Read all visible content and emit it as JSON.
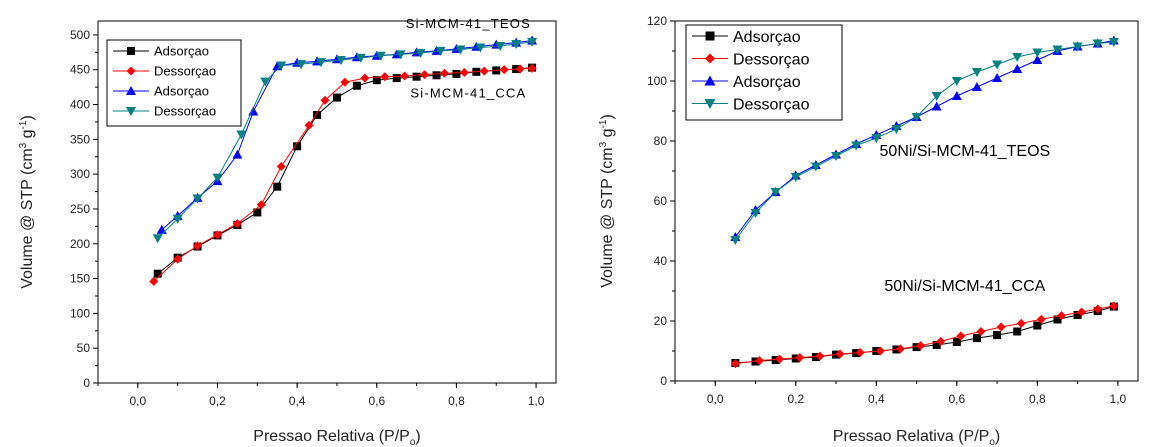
{
  "chart_data": [
    {
      "type": "line",
      "xlabel": "Pressao Relativa (P/P",
      "xlabel_sub": "o",
      "xlabel_end": ")",
      "ylabel": "Volume @ STP (cm",
      "ylabel_sup1": "3",
      "ylabel_mid": " g",
      "ylabel_sup2": "-1",
      "ylabel_end": ")",
      "xlim": [
        -0.1,
        1.05
      ],
      "ylim": [
        0,
        520
      ],
      "xticks": [
        0.0,
        0.2,
        0.4,
        0.6,
        0.8,
        1.0
      ],
      "xtick_labels": [
        "0,0",
        "0,2",
        "0,4",
        "0,6",
        "0,8",
        "1,0"
      ],
      "yticks": [
        0,
        50,
        100,
        150,
        200,
        250,
        300,
        350,
        400,
        450,
        500
      ],
      "ytick_labels": [
        "0",
        "50",
        "100",
        "150",
        "200",
        "250",
        "300",
        "350",
        "400",
        "450",
        "500"
      ],
      "legend_position": "top-left",
      "annotations": [
        {
          "text": "Si-MCM-41_TEOS",
          "x": 0.83,
          "y": 510
        },
        {
          "text": "Si-MCM-41_CCA",
          "x": 0.83,
          "y": 410
        }
      ],
      "series": [
        {
          "name": "Adsorçao",
          "color": "#000000",
          "marker": "square",
          "x": [
            0.05,
            0.1,
            0.15,
            0.2,
            0.25,
            0.3,
            0.35,
            0.4,
            0.45,
            0.5,
            0.55,
            0.6,
            0.65,
            0.7,
            0.75,
            0.8,
            0.85,
            0.9,
            0.95,
            0.99
          ],
          "y": [
            157,
            180,
            196,
            212,
            227,
            245,
            282,
            340,
            385,
            410,
            427,
            435,
            438,
            440,
            442,
            444,
            447,
            449,
            451,
            453
          ]
        },
        {
          "name": "Dessorçao",
          "color": "#ff0000",
          "marker": "diamond",
          "x": [
            0.04,
            0.1,
            0.15,
            0.2,
            0.25,
            0.31,
            0.36,
            0.43,
            0.47,
            0.52,
            0.57,
            0.62,
            0.67,
            0.72,
            0.77,
            0.82,
            0.87,
            0.92,
            0.96,
            0.99
          ],
          "y": [
            146,
            178,
            197,
            213,
            229,
            256,
            311,
            370,
            406,
            432,
            438,
            440,
            441,
            443,
            445,
            446,
            448,
            450,
            451,
            452
          ]
        },
        {
          "name": "Adsorçao",
          "color": "#0000ff",
          "marker": "triangle-up",
          "x": [
            0.06,
            0.1,
            0.15,
            0.2,
            0.25,
            0.29,
            0.35,
            0.4,
            0.45,
            0.5,
            0.55,
            0.6,
            0.65,
            0.7,
            0.75,
            0.8,
            0.85,
            0.9,
            0.95,
            0.99
          ],
          "y": [
            220,
            240,
            266,
            290,
            328,
            390,
            455,
            460,
            462,
            465,
            468,
            470,
            472,
            475,
            477,
            480,
            483,
            486,
            489,
            492
          ]
        },
        {
          "name": "Dessorçao",
          "color": "#008080",
          "marker": "triangle-down",
          "x": [
            0.05,
            0.1,
            0.15,
            0.2,
            0.26,
            0.32,
            0.36,
            0.41,
            0.46,
            0.51,
            0.56,
            0.61,
            0.66,
            0.71,
            0.76,
            0.81,
            0.86,
            0.91,
            0.95,
            0.99
          ],
          "y": [
            208,
            236,
            265,
            295,
            357,
            433,
            456,
            458,
            461,
            464,
            467,
            470,
            472,
            474,
            477,
            479,
            482,
            484,
            487,
            490
          ]
        }
      ]
    },
    {
      "type": "line",
      "xlabel": "Pressao Relativa (P/P",
      "xlabel_sub": "o",
      "xlabel_end": ")",
      "ylabel": "Volume @ STP (cm",
      "ylabel_sup1": "3",
      "ylabel_mid": " g",
      "ylabel_sup2": "-1",
      "ylabel_end": ")",
      "xlim": [
        -0.1,
        1.05
      ],
      "ylim": [
        0,
        120
      ],
      "xticks": [
        0.0,
        0.2,
        0.4,
        0.6,
        0.8,
        1.0
      ],
      "xtick_labels": [
        "0,0",
        "0,2",
        "0,4",
        "0,6",
        "0,8",
        "1,0"
      ],
      "yticks": [
        0,
        20,
        40,
        60,
        80,
        100,
        120
      ],
      "ytick_labels": [
        "0",
        "20",
        "40",
        "60",
        "80",
        "100",
        "120"
      ],
      "legend_position": "top-left",
      "annotations": [
        {
          "text": "50Ni/Si-MCM-41_TEOS",
          "x": 0.62,
          "y": 75
        },
        {
          "text": "50Ni/Si-MCM-41_CCA",
          "x": 0.62,
          "y": 30
        }
      ],
      "series": [
        {
          "name": "Adsorçao",
          "color": "#000000",
          "marker": "square",
          "x": [
            0.05,
            0.1,
            0.15,
            0.2,
            0.25,
            0.3,
            0.35,
            0.4,
            0.45,
            0.5,
            0.55,
            0.6,
            0.65,
            0.7,
            0.75,
            0.8,
            0.85,
            0.9,
            0.95,
            0.99
          ],
          "y": [
            6,
            6.5,
            7,
            7.5,
            8,
            8.8,
            9.3,
            10,
            10.5,
            11.3,
            12,
            13,
            14.3,
            15.3,
            16.5,
            18.5,
            20.5,
            22,
            23.3,
            24.8
          ]
        },
        {
          "name": "Dessorçao",
          "color": "#ff0000",
          "marker": "diamond",
          "x": [
            0.05,
            0.11,
            0.16,
            0.21,
            0.26,
            0.31,
            0.36,
            0.41,
            0.46,
            0.51,
            0.56,
            0.61,
            0.66,
            0.71,
            0.76,
            0.81,
            0.86,
            0.91,
            0.95,
            0.99
          ],
          "y": [
            5.8,
            6.8,
            7.3,
            7.8,
            8.3,
            9,
            9.5,
            10,
            10.7,
            11.8,
            13.2,
            15,
            16.5,
            18,
            19.2,
            20.6,
            21.8,
            23,
            24,
            25
          ]
        },
        {
          "name": "Adsorçao",
          "color": "#0000ff",
          "marker": "triangle-up",
          "x": [
            0.05,
            0.1,
            0.15,
            0.2,
            0.25,
            0.3,
            0.35,
            0.4,
            0.45,
            0.5,
            0.55,
            0.6,
            0.65,
            0.7,
            0.75,
            0.8,
            0.85,
            0.9,
            0.95,
            0.99
          ],
          "y": [
            48,
            57,
            63,
            68.5,
            72,
            75.5,
            79,
            82,
            85,
            88,
            91.5,
            95,
            98,
            101,
            104,
            107,
            110,
            111.5,
            112.5,
            113.5
          ]
        },
        {
          "name": "Dessorçao",
          "color": "#008080",
          "marker": "triangle-down",
          "x": [
            0.05,
            0.1,
            0.15,
            0.2,
            0.25,
            0.3,
            0.35,
            0.4,
            0.45,
            0.5,
            0.55,
            0.6,
            0.65,
            0.7,
            0.75,
            0.8,
            0.85,
            0.9,
            0.95,
            0.99
          ],
          "y": [
            47,
            56,
            63,
            68,
            71.5,
            75,
            78.5,
            81,
            84,
            88,
            95,
            100,
            103,
            105.5,
            108,
            109.5,
            110.5,
            111.5,
            112.5,
            113
          ]
        }
      ]
    }
  ]
}
